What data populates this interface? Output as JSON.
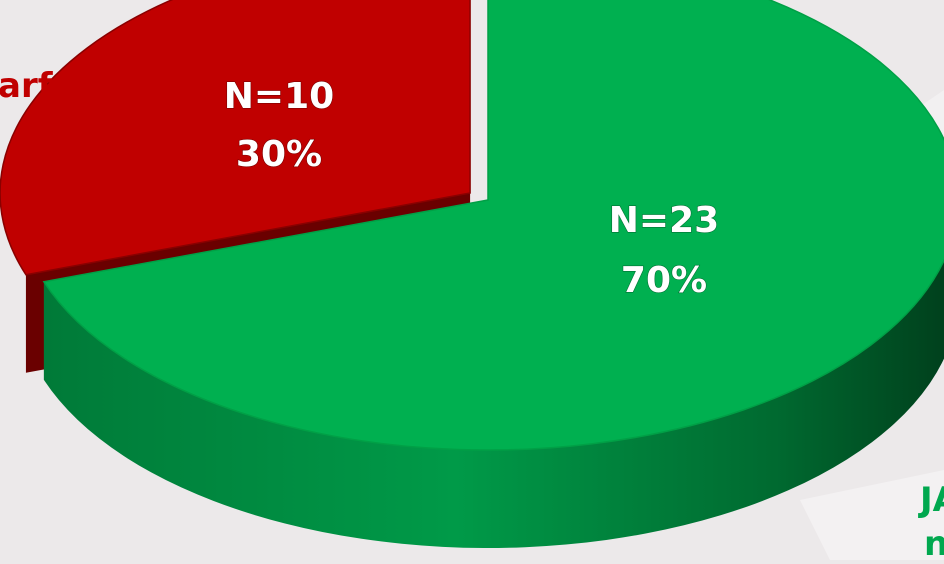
{
  "chart_data": {
    "type": "pie",
    "style": "3d-exploded",
    "title": "",
    "slices": [
      {
        "label": "arf",
        "n_text": "N=10",
        "pct_text": "30%",
        "value": 10,
        "percent": 30,
        "color": "#c00000",
        "exploded": true
      },
      {
        "label": "JA",
        "label_line2": "n",
        "n_text": "N=23",
        "pct_text": "70%",
        "value": 23,
        "percent": 70,
        "color": "#00b050",
        "exploded": false
      }
    ]
  }
}
